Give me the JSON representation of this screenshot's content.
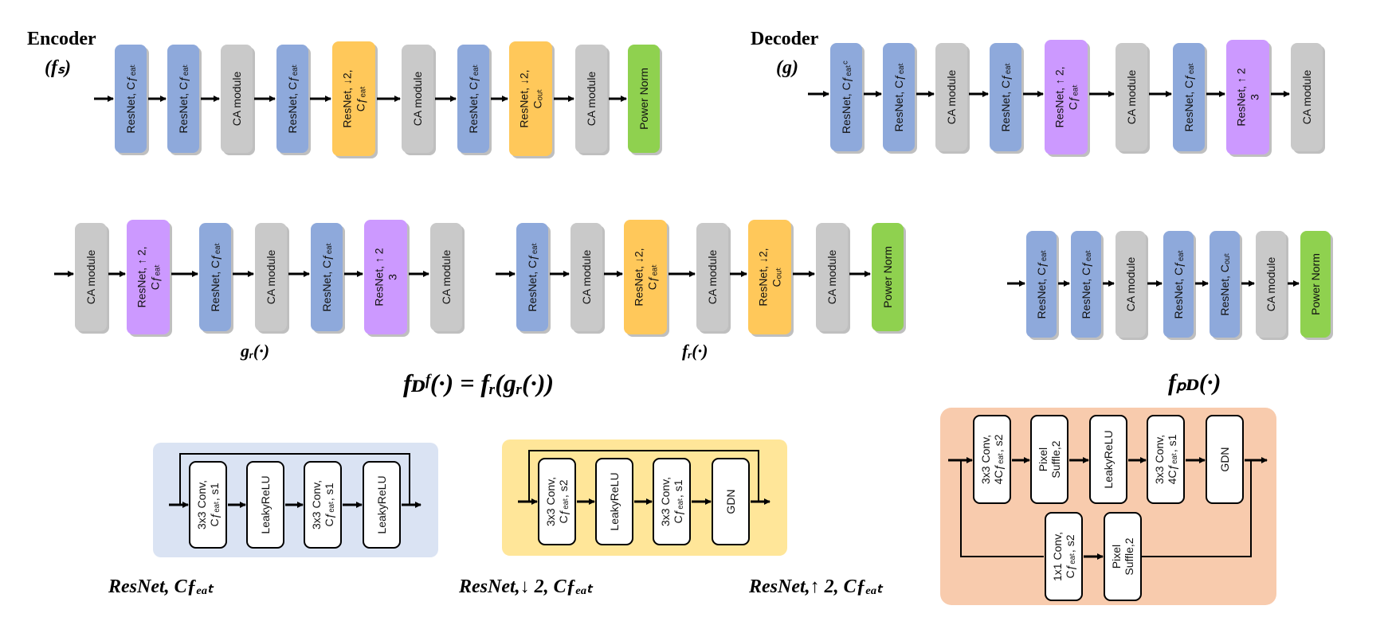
{
  "colors": {
    "resnet": "#8ea9db",
    "ca": "#c9c9c9",
    "down": "#ffc85a",
    "up": "#cc99ff",
    "power": "#8fd14f",
    "legend_blue_bg": "#dae3f3",
    "legend_yellow_bg": "#ffe699",
    "legend_orange_bg": "#f8cbad",
    "legend_blue_text": "#2f5597",
    "legend_yellow_text": "#ffc000",
    "legend_orange_text": "#f8cbad"
  },
  "encoder": {
    "title": "Encoder",
    "symbol": "(fₛ)",
    "blocks": [
      {
        "type": "resnet",
        "label": "ResNet, Cƒₑₐₜ"
      },
      {
        "type": "resnet",
        "label": "ResNet, Cƒₑₐₜ"
      },
      {
        "type": "ca",
        "label": "CA module"
      },
      {
        "type": "resnet",
        "label": "ResNet, Cƒₑₐₜ"
      },
      {
        "type": "down",
        "label": "ResNet, ↓2,|Cƒₑₐₜ"
      },
      {
        "type": "ca",
        "label": "CA module"
      },
      {
        "type": "resnet",
        "label": "ResNet, Cƒₑₐₜ"
      },
      {
        "type": "down",
        "label": "ResNet, ↓2,|Cₒᵤₜ"
      },
      {
        "type": "ca",
        "label": "CA module"
      },
      {
        "type": "power",
        "label": "Power Norm"
      }
    ]
  },
  "decoder": {
    "title": "Decoder",
    "symbol": "(g)",
    "blocks": [
      {
        "type": "resnet",
        "label": "ResNet, Cƒₑₐₜᶜ"
      },
      {
        "type": "resnet",
        "label": "ResNet, Cƒₑₐₜ"
      },
      {
        "type": "ca",
        "label": "CA module"
      },
      {
        "type": "resnet",
        "label": "ResNet, Cƒₑₐₜ"
      },
      {
        "type": "up",
        "label": "ResNet, ↑ 2,|Cƒₑₐₜ"
      },
      {
        "type": "ca",
        "label": "CA module"
      },
      {
        "type": "resnet",
        "label": "ResNet, Cƒₑₐₜ"
      },
      {
        "type": "up",
        "label": "ResNet, ↑ 2|3"
      },
      {
        "type": "ca",
        "label": "CA module"
      }
    ]
  },
  "gr": {
    "caption": "gᵣ(·)",
    "blocks": [
      {
        "type": "ca",
        "label": "CA module"
      },
      {
        "type": "up",
        "label": "ResNet, ↑ 2,|Cƒₑₐₜ"
      },
      {
        "type": "resnet",
        "label": "ResNet, Cƒₑₐₜ"
      },
      {
        "type": "ca",
        "label": "CA module"
      },
      {
        "type": "resnet",
        "label": "ResNet, Cƒₑₐₜ"
      },
      {
        "type": "up",
        "label": "ResNet, ↑ 2|3"
      },
      {
        "type": "ca",
        "label": "CA module"
      }
    ]
  },
  "fr": {
    "caption": "fᵣ(·)",
    "blocks": [
      {
        "type": "resnet",
        "label": "ResNet, Cƒₑₐₜ"
      },
      {
        "type": "ca",
        "label": "CA module"
      },
      {
        "type": "down",
        "label": "ResNet, ↓2,|Cƒₑₐₜ"
      },
      {
        "type": "ca",
        "label": "CA module"
      },
      {
        "type": "down",
        "label": "ResNet, ↓2,|Cₒᵤₜ"
      },
      {
        "type": "ca",
        "label": "CA module"
      },
      {
        "type": "power",
        "label": "Power Norm"
      }
    ]
  },
  "fpf": {
    "caption": "fₚᴅ(·)",
    "blocks": [
      {
        "type": "resnet",
        "label": "ResNet, Cƒₑₐₜ"
      },
      {
        "type": "resnet",
        "label": "ResNet, Cƒₑₐₜ"
      },
      {
        "type": "ca",
        "label": "CA module"
      },
      {
        "type": "resnet",
        "label": "ResNet, Cƒₑₐₜ"
      },
      {
        "type": "resnet",
        "label": "ResNet, Cₒᵤₜ"
      },
      {
        "type": "ca",
        "label": "CA module"
      },
      {
        "type": "power",
        "label": "Power Norm"
      }
    ]
  },
  "fdf_equation": "fᴅᶠ(·) = fᵣ(gᵣ(·))",
  "legend_resnet": {
    "title": "ResNet, Cƒₑₐₜ",
    "ops": [
      "3x3 Conv,|Cƒₑₐₜ, s1",
      "LeakyReLU",
      "3x3 Conv,|Cƒₑₐₜ, s1",
      "LeakyReLU"
    ]
  },
  "legend_down": {
    "title": "ResNet,↓ 2, Cƒₑₐₜ",
    "ops": [
      "3x3 Conv,|Cƒₑₐₜ, s2",
      "LeakyReLU",
      "3x3 Conv,|Cƒₑₐₜ, s1",
      "GDN"
    ]
  },
  "legend_up": {
    "title": "ResNet,↑ 2, Cƒₑₐₜ",
    "ops_main": [
      "3x3 Conv,|4Cƒₑₐₜ, s2",
      "Pixel|Suffle,2",
      "LeakyReLU",
      "3x3 Conv,|4Cƒₑₐₜ, s1",
      "GDN"
    ],
    "ops_skip": [
      "1x1 Conv,|Cƒₑₐₜ, s2",
      "Pixel|Suffle,2"
    ]
  }
}
